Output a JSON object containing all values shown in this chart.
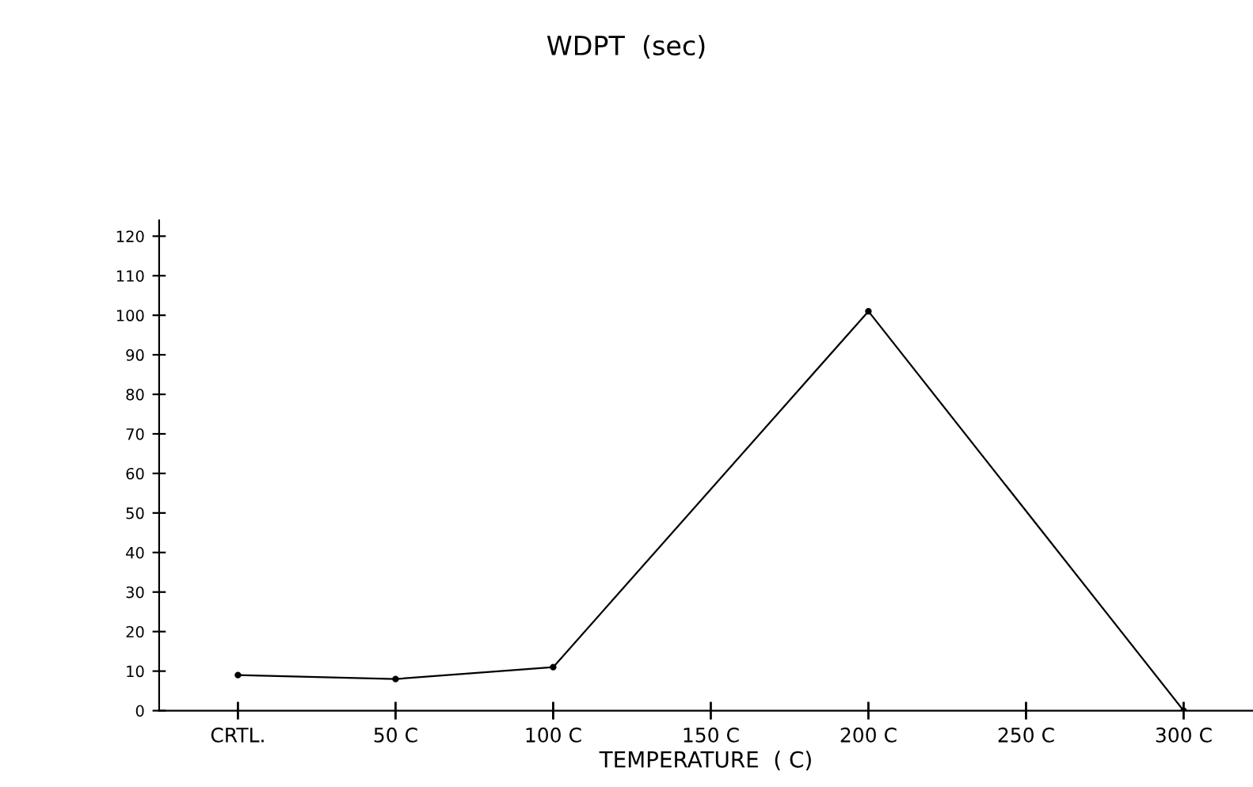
{
  "chart_data": {
    "type": "line",
    "title": "WDPT  (sec)",
    "xlabel": "TEMPERATURE  ( C)",
    "x": [
      0,
      50,
      100,
      200,
      300
    ],
    "series": [
      {
        "color": "#000000",
        "values": [
          9,
          8,
          11,
          101,
          0
        ]
      }
    ],
    "xlim": [
      -25,
      322
    ],
    "xticks": [
      {
        "value": 0,
        "label": "CRTL."
      },
      {
        "value": 50,
        "label": "50 C"
      },
      {
        "value": 100,
        "label": "100 C"
      },
      {
        "value": 150,
        "label": "150 C"
      },
      {
        "value": 200,
        "label": "200 C"
      },
      {
        "value": 250,
        "label": "250 C"
      },
      {
        "value": 300,
        "label": "300 C"
      }
    ],
    "ylim": [
      0,
      124
    ],
    "yticks": [
      0,
      10,
      20,
      30,
      40,
      50,
      60,
      70,
      80,
      90,
      100,
      110,
      120
    ],
    "grid": false,
    "marker": "circle",
    "line_style": "solid"
  }
}
